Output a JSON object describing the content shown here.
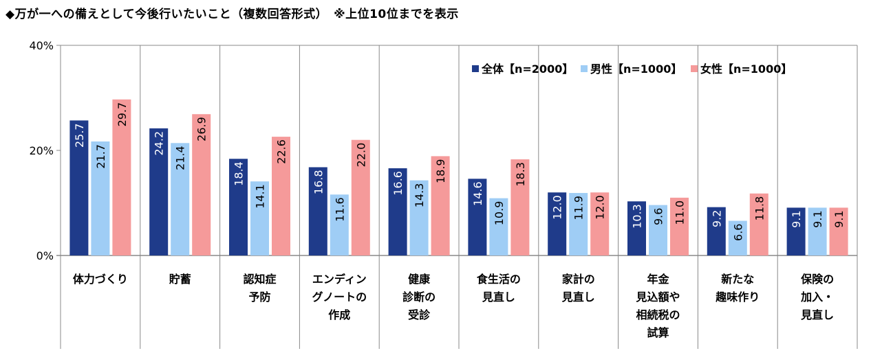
{
  "title": "◆万が一への備えとして今後行いたいこと（複数回答形式）　※上位10位までを表示",
  "colors": {
    "all": "#1f3b8a",
    "male": "#9fcdf5",
    "female": "#f59a9a",
    "grid": "#888888"
  },
  "chart_data": {
    "type": "bar",
    "title": "◆万が一への備えとして今後行いたいこと（複数回答形式）　※上位10位までを表示",
    "categories": [
      [
        "体力づくり"
      ],
      [
        "貯蓄"
      ],
      [
        "認知症",
        "予防"
      ],
      [
        "エンディン",
        "グノートの",
        "作成"
      ],
      [
        "健康",
        "診断の",
        "受診"
      ],
      [
        "食生活の",
        "見直し"
      ],
      [
        "家計の",
        "見直し"
      ],
      [
        "年金",
        "見込額や",
        "相続税の",
        "試算"
      ],
      [
        "新たな",
        "趣味作り"
      ],
      [
        "保険の",
        "加入・",
        "見直し"
      ]
    ],
    "series": [
      {
        "name": "全体【n=2000】",
        "values": [
          25.7,
          24.2,
          18.4,
          16.8,
          16.6,
          14.6,
          12.0,
          10.3,
          9.2,
          9.1
        ]
      },
      {
        "name": "男性【n=1000】",
        "values": [
          21.7,
          21.4,
          14.1,
          11.6,
          14.3,
          10.9,
          11.9,
          9.6,
          6.6,
          9.1
        ]
      },
      {
        "name": "女性【n=1000】",
        "values": [
          29.7,
          26.9,
          22.6,
          22.0,
          18.9,
          18.3,
          12.0,
          11.0,
          11.8,
          9.1
        ]
      }
    ],
    "y_ticks": [
      "40%",
      "20%",
      "0%"
    ],
    "ylim": [
      0,
      40
    ],
    "legend_position": "top-right",
    "value_labels": "vertical-inside-bars",
    "grid": "vertical-separators"
  }
}
